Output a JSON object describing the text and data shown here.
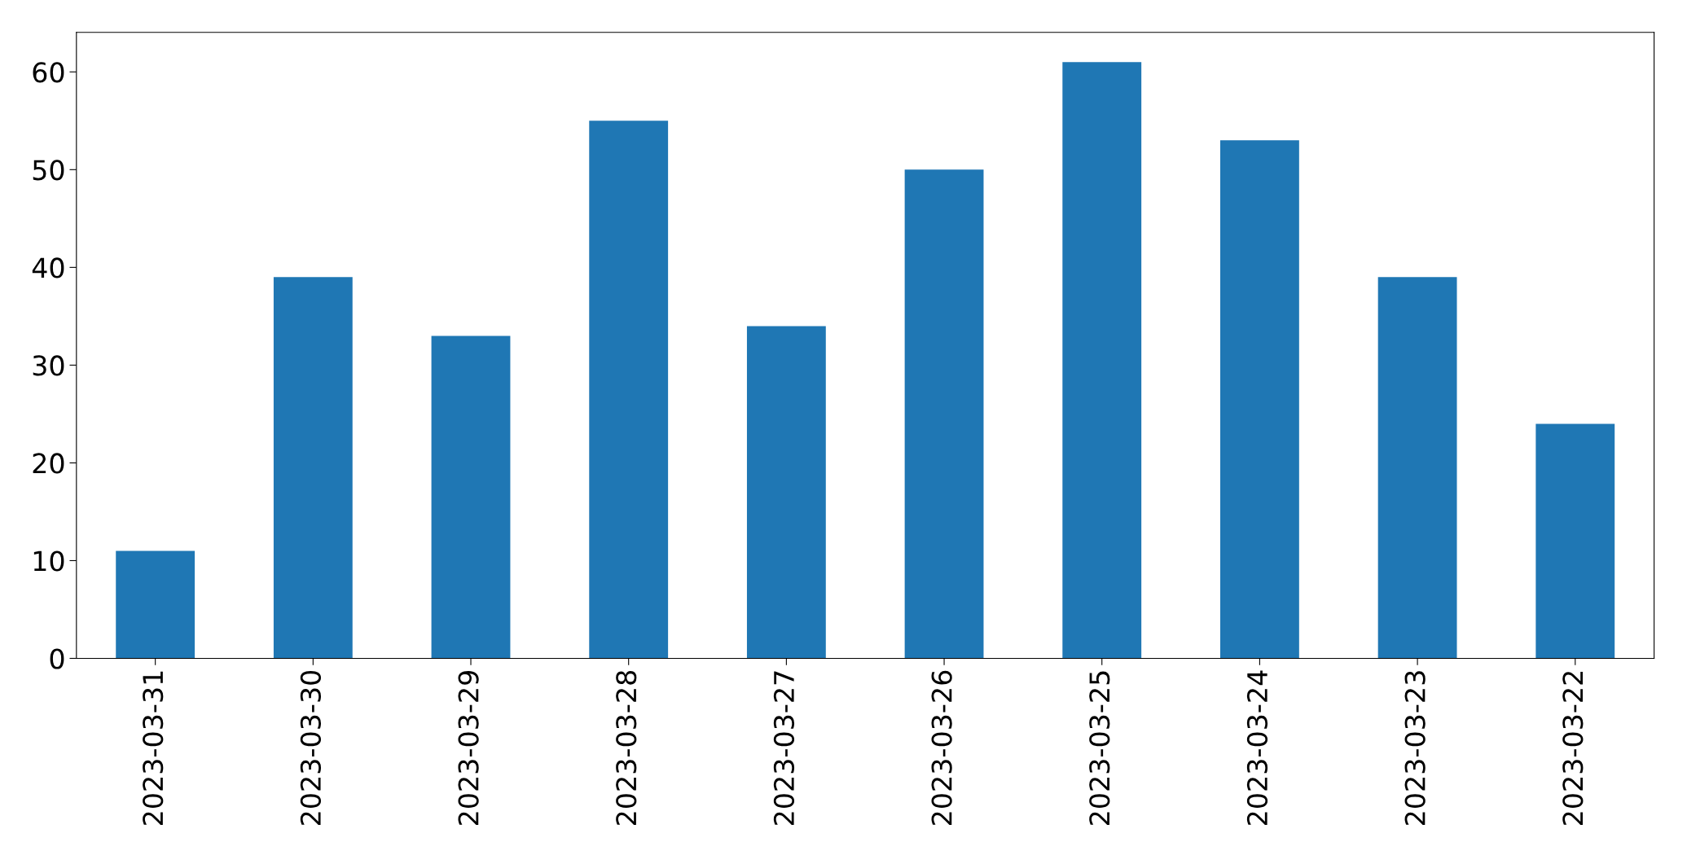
{
  "chart_data": {
    "type": "bar",
    "categories": [
      "2023-03-31",
      "2023-03-30",
      "2023-03-29",
      "2023-03-28",
      "2023-03-27",
      "2023-03-26",
      "2023-03-25",
      "2023-03-24",
      "2023-03-23",
      "2023-03-22"
    ],
    "values": [
      11,
      39,
      33,
      55,
      34,
      50,
      61,
      53,
      39,
      24
    ],
    "color": "#1f77b4",
    "ylim": [
      0,
      64.05
    ],
    "yticks": [
      0,
      10,
      20,
      30,
      40,
      50,
      60
    ],
    "grid": false,
    "legend": false
  }
}
